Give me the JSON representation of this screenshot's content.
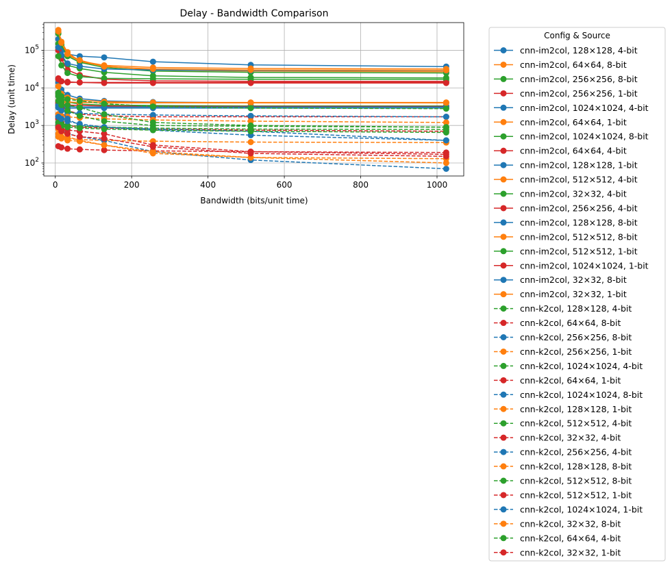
{
  "chart_data": {
    "type": "line",
    "title": "Delay - Bandwidth Comparison",
    "xlabel": "Bandwidth (bits/unit time)",
    "ylabel": "Delay (unit time)",
    "xlim": [
      -30,
      1070
    ],
    "ylim": [
      45,
      550000
    ],
    "yscale": "log",
    "x_ticks": [
      0,
      200,
      400,
      600,
      800,
      1000
    ],
    "y_ticks": [
      100,
      1000,
      10000,
      100000
    ],
    "grid": true,
    "legend": {
      "title": "Config & Source",
      "placement": "outside-right"
    },
    "x": [
      8,
      16,
      32,
      64,
      128,
      256,
      512,
      1024
    ],
    "series": [
      {
        "name": "cnn-im2col, 128×128, 4-bit",
        "color": "#1f77b4",
        "style": "solid",
        "values": [
          200000,
          100000,
          80000,
          70000,
          65000,
          50000,
          41000,
          37000
        ]
      },
      {
        "name": "cnn-im2col, 64×64, 8-bit",
        "color": "#ff7f0e",
        "style": "solid",
        "values": [
          300000,
          150000,
          75000,
          52000,
          40000,
          35000,
          33000,
          32000
        ]
      },
      {
        "name": "cnn-im2col, 256×256, 8-bit",
        "color": "#2ca02c",
        "style": "solid",
        "values": [
          150000,
          70000,
          40000,
          33000,
          26000,
          21000,
          19000,
          18500
        ]
      },
      {
        "name": "cnn-im2col, 256×256, 1-bit",
        "color": "#d62728",
        "style": "solid",
        "values": [
          18000,
          15000,
          14000,
          14000,
          14000,
          14000,
          14000,
          14000
        ]
      },
      {
        "name": "cnn-im2col, 1024×1024, 4-bit",
        "color": "#1f77b4",
        "style": "solid",
        "values": [
          14000,
          9000,
          6500,
          5200,
          4500,
          4200,
          4000,
          4000
        ]
      },
      {
        "name": "cnn-im2col, 64×64, 1-bit",
        "color": "#ff7f0e",
        "style": "solid",
        "values": [
          11000,
          7000,
          5500,
          4700,
          4300,
          4100,
          4100,
          4100
        ]
      },
      {
        "name": "cnn-im2col, 1024×1024, 8-bit",
        "color": "#2ca02c",
        "style": "solid",
        "values": [
          7000,
          5500,
          4200,
          3700,
          3500,
          3400,
          3300,
          3300
        ]
      },
      {
        "name": "cnn-im2col, 64×64, 4-bit",
        "color": "#d62728",
        "style": "solid",
        "values": [
          4000,
          3700,
          3500,
          3400,
          3300,
          3200,
          3200,
          3200
        ]
      },
      {
        "name": "cnn-im2col, 128×128, 1-bit",
        "color": "#1f77b4",
        "style": "solid",
        "values": [
          3500,
          3300,
          3200,
          3100,
          3100,
          3100,
          3100,
          3100
        ]
      },
      {
        "name": "cnn-im2col, 512×512, 4-bit",
        "color": "#ff7f0e",
        "style": "solid",
        "values": [
          350000,
          170000,
          90000,
          50000,
          38000,
          30000,
          28000,
          27000
        ]
      },
      {
        "name": "cnn-im2col, 32×32, 4-bit",
        "color": "#2ca02c",
        "style": "solid",
        "values": [
          280000,
          140000,
          70000,
          48000,
          35000,
          28000,
          26000,
          25000
        ]
      },
      {
        "name": "cnn-im2col, 256×256, 4-bit",
        "color": "#d62728",
        "style": "solid",
        "values": [
          100000,
          60000,
          30000,
          22000,
          17000,
          15500,
          15000,
          15000
        ]
      },
      {
        "name": "cnn-im2col, 128×128, 8-bit",
        "color": "#1f77b4",
        "style": "solid",
        "values": [
          120000,
          75000,
          45000,
          38000,
          32000,
          30000,
          29000,
          29000
        ]
      },
      {
        "name": "cnn-im2col, 512×512, 8-bit",
        "color": "#ff7f0e",
        "style": "solid",
        "values": [
          320000,
          160000,
          80000,
          55000,
          37000,
          32000,
          30000,
          29500
        ]
      },
      {
        "name": "cnn-im2col, 512×512, 1-bit",
        "color": "#2ca02c",
        "style": "solid",
        "values": [
          70000,
          40000,
          25000,
          20000,
          18000,
          17500,
          17000,
          17000
        ]
      },
      {
        "name": "cnn-im2col, 1024×1024, 1-bit",
        "color": "#d62728",
        "style": "solid",
        "values": [
          17000,
          15000,
          14500,
          14000,
          13500,
          13500,
          13500,
          13500
        ]
      },
      {
        "name": "cnn-im2col, 32×32, 8-bit",
        "color": "#1f77b4",
        "style": "solid",
        "values": [
          3000,
          3000,
          2900,
          2900,
          2900,
          2900,
          2900,
          2900
        ]
      },
      {
        "name": "cnn-im2col, 32×32, 1-bit",
        "color": "#ff7f0e",
        "style": "solid",
        "values": [
          4500,
          4300,
          4200,
          4100,
          4000,
          4000,
          4000,
          4000
        ]
      },
      {
        "name": "cnn-k2col, 128×128, 4-bit",
        "color": "#2ca02c",
        "style": "dashed",
        "values": [
          7500,
          6000,
          5000,
          4500,
          3800,
          3200,
          2900,
          2800
        ]
      },
      {
        "name": "cnn-k2col, 64×64, 8-bit",
        "color": "#d62728",
        "style": "dashed",
        "values": [
          4000,
          3000,
          2500,
          2000,
          1800,
          1700,
          1700,
          1700
        ]
      },
      {
        "name": "cnn-k2col, 256×256, 8-bit",
        "color": "#1f77b4",
        "style": "dashed",
        "values": [
          3000,
          2500,
          2200,
          2100,
          2000,
          1900,
          1800,
          1700
        ]
      },
      {
        "name": "cnn-k2col, 256×256, 1-bit",
        "color": "#ff7f0e",
        "style": "dashed",
        "values": [
          2000,
          1800,
          1700,
          1600,
          1500,
          1400,
          1300,
          1200
        ]
      },
      {
        "name": "cnn-k2col, 1024×1024, 4-bit",
        "color": "#2ca02c",
        "style": "dashed",
        "values": [
          6000,
          4500,
          3500,
          3000,
          2000,
          1200,
          1000,
          900
        ]
      },
      {
        "name": "cnn-k2col, 64×64, 1-bit",
        "color": "#d62728",
        "style": "dashed",
        "values": [
          1500,
          1200,
          1000,
          900,
          850,
          800,
          750,
          700
        ]
      },
      {
        "name": "cnn-k2col, 1024×1024, 8-bit",
        "color": "#1f77b4",
        "style": "dashed",
        "values": [
          3500,
          2500,
          1500,
          1000,
          900,
          800,
          700,
          400
        ]
      },
      {
        "name": "cnn-k2col, 128×128, 1-bit",
        "color": "#ff7f0e",
        "style": "dashed",
        "values": [
          600,
          500,
          450,
          420,
          400,
          380,
          360,
          350
        ]
      },
      {
        "name": "cnn-k2col, 512×512, 4-bit",
        "color": "#2ca02c",
        "style": "dashed",
        "values": [
          1200,
          1100,
          1000,
          950,
          900,
          850,
          800,
          780
        ]
      },
      {
        "name": "cnn-k2col, 32×32, 4-bit",
        "color": "#d62728",
        "style": "dashed",
        "values": [
          280,
          260,
          240,
          230,
          220,
          210,
          200,
          190
        ]
      },
      {
        "name": "cnn-k2col, 256×256, 4-bit",
        "color": "#1f77b4",
        "style": "dashed",
        "values": [
          1000,
          800,
          600,
          500,
          400,
          200,
          120,
          70
        ]
      },
      {
        "name": "cnn-k2col, 128×128, 8-bit",
        "color": "#ff7f0e",
        "style": "dashed",
        "values": [
          800,
          700,
          500,
          400,
          300,
          200,
          140,
          100
        ]
      },
      {
        "name": "cnn-k2col, 512×512, 8-bit",
        "color": "#2ca02c",
        "style": "dashed",
        "values": [
          4500,
          3500,
          2500,
          1800,
          1300,
          1000,
          950,
          900
        ]
      },
      {
        "name": "cnn-k2col, 512×512, 1-bit",
        "color": "#d62728",
        "style": "dashed",
        "values": [
          900,
          800,
          750,
          700,
          600,
          300,
          200,
          170
        ]
      },
      {
        "name": "cnn-k2col, 1024×1024, 1-bit",
        "color": "#1f77b4",
        "style": "dashed",
        "values": [
          1700,
          1500,
          1300,
          1100,
          900,
          750,
          550,
          400
        ]
      },
      {
        "name": "cnn-k2col, 32×32, 8-bit",
        "color": "#ff7f0e",
        "style": "dashed",
        "values": [
          500,
          450,
          400,
          380,
          300,
          180,
          140,
          130
        ]
      },
      {
        "name": "cnn-k2col, 64×64, 4-bit",
        "color": "#2ca02c",
        "style": "dashed",
        "values": [
          1000,
          950,
          900,
          850,
          800,
          750,
          700,
          650
        ]
      },
      {
        "name": "cnn-k2col, 32×32, 1-bit",
        "color": "#d62728",
        "style": "dashed",
        "values": [
          900,
          700,
          600,
          500,
          450,
          270,
          180,
          150
        ]
      }
    ]
  }
}
